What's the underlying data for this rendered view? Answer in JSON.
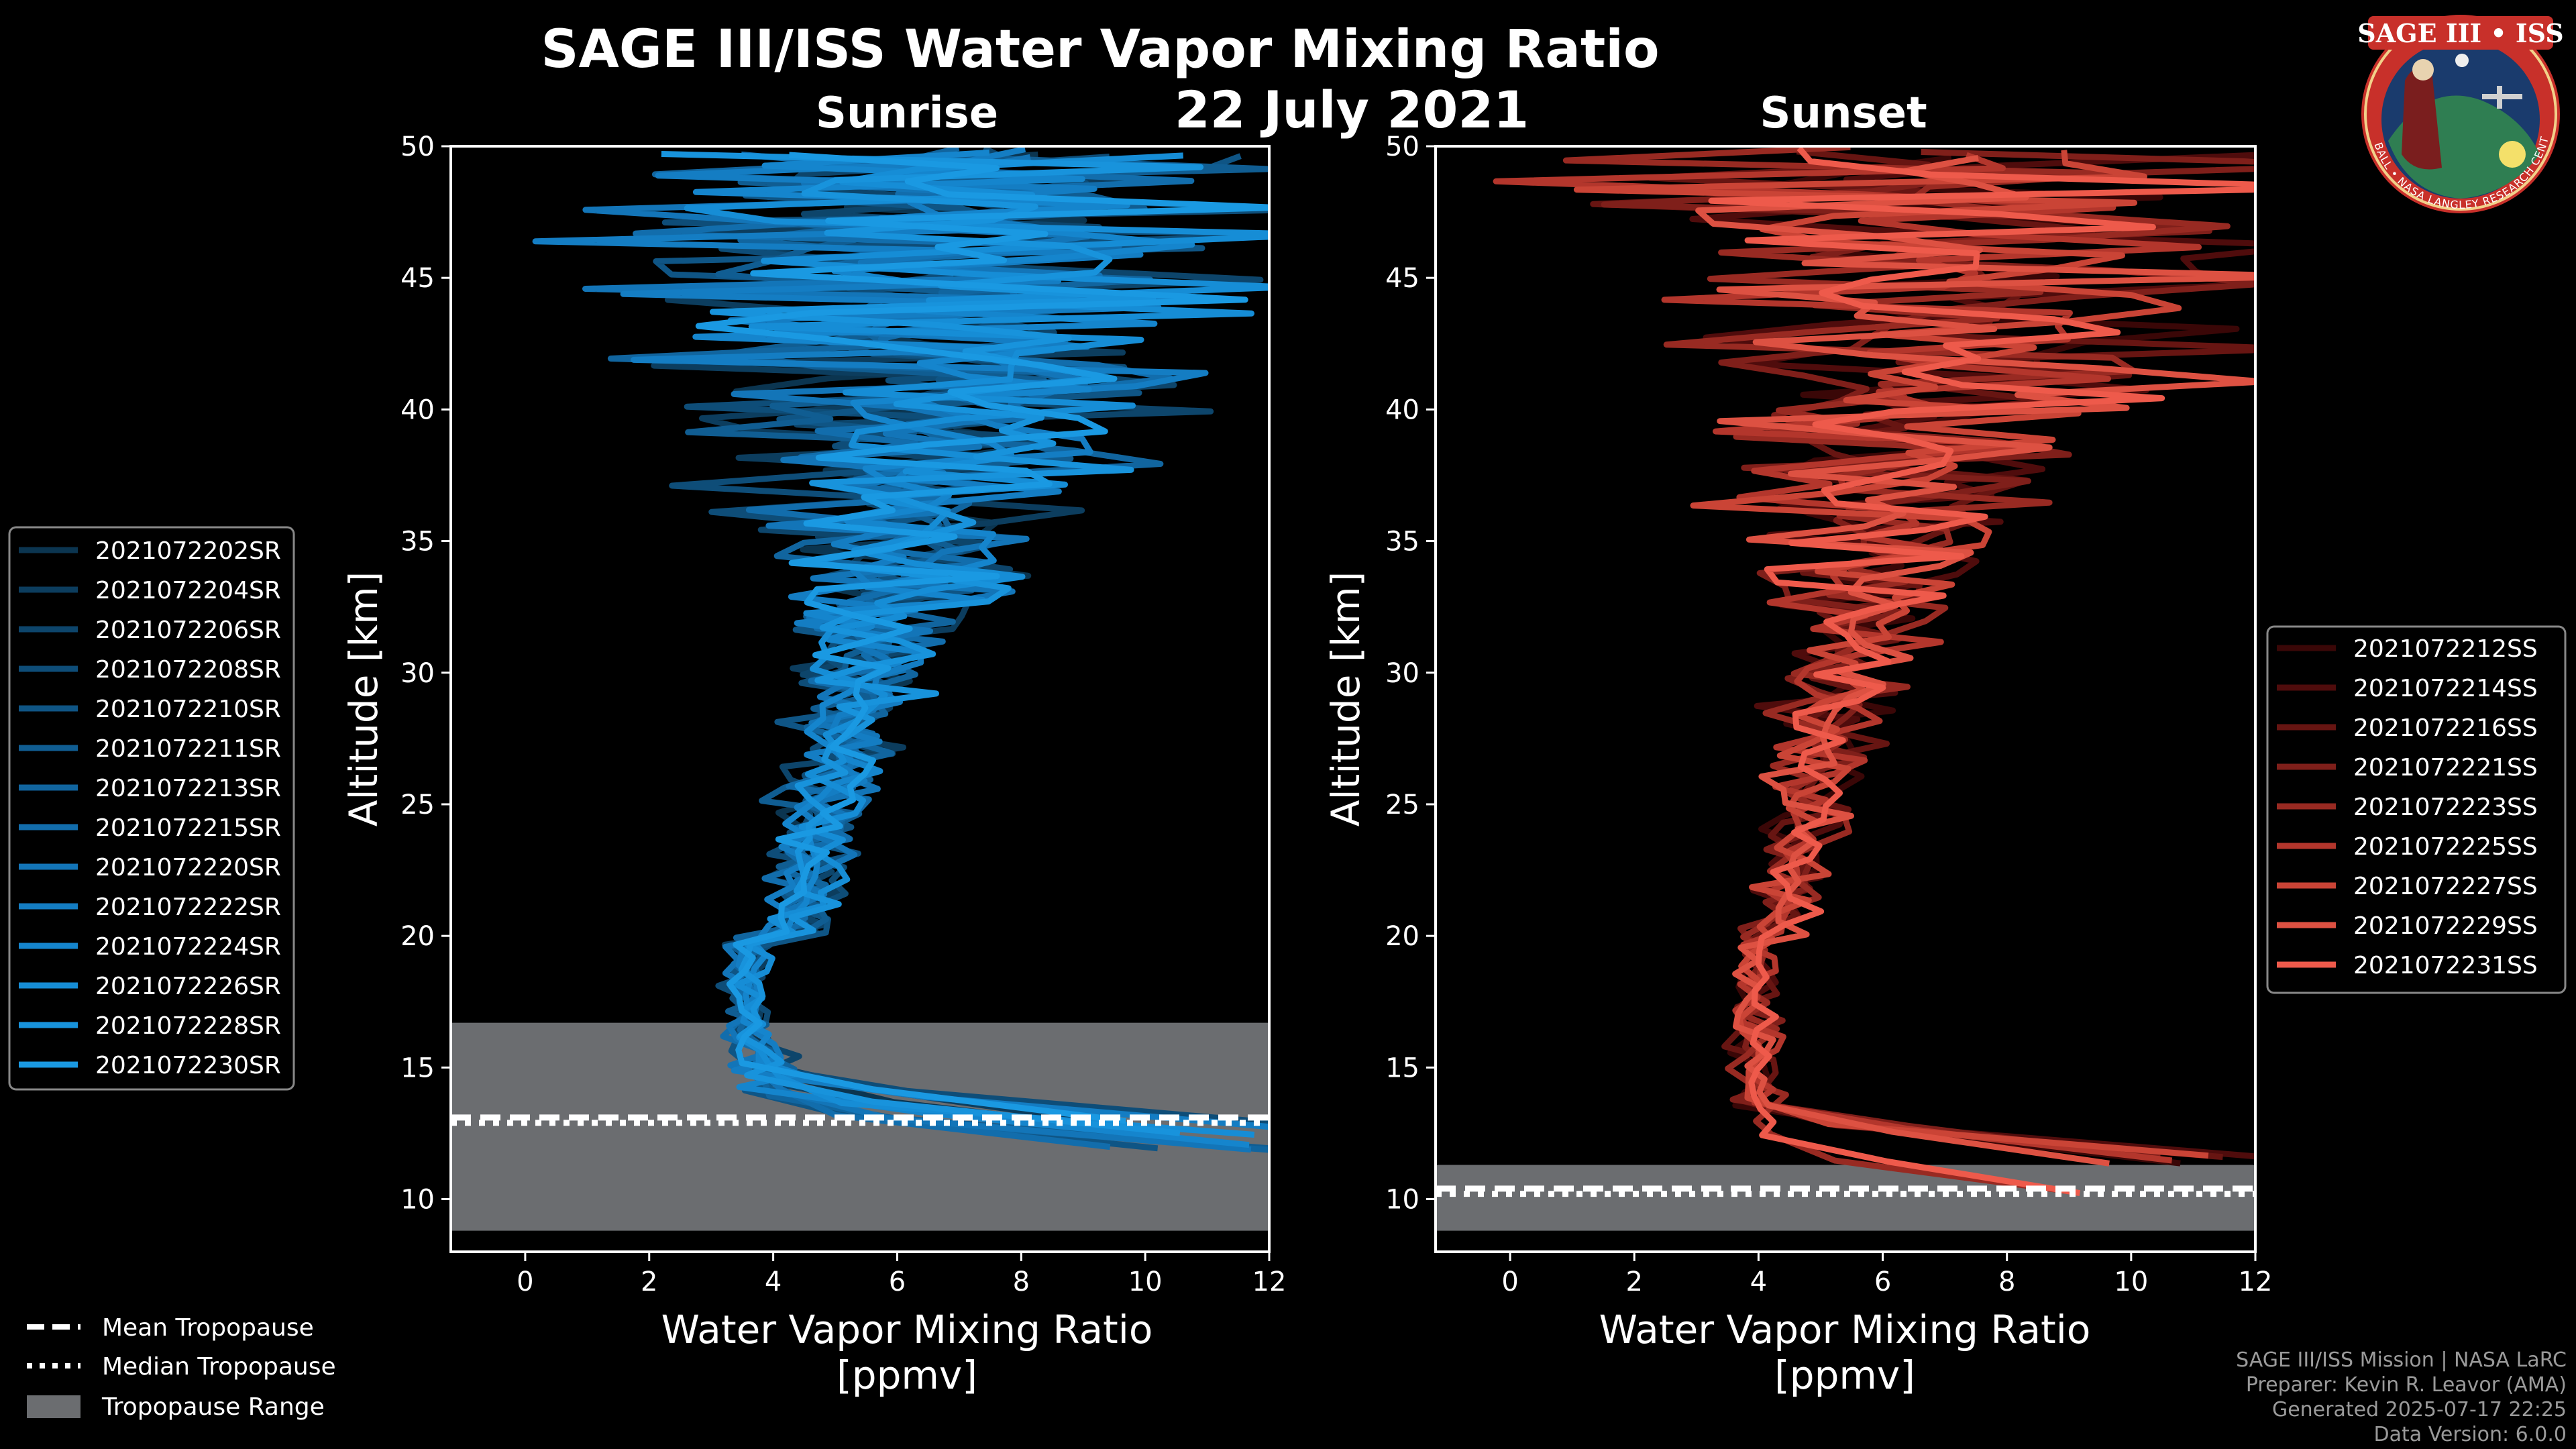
{
  "chart_data": {
    "type": "line",
    "title": "SAGE III/ISS Water Vapor Mixing Ratio",
    "subtitle": "22 July 2021",
    "panels": [
      {
        "name": "Sunrise",
        "xlabel_line1": "Water Vapor Mixing Ratio",
        "xlabel_line2": "[ppmv]",
        "ylabel": "Altitude [km]",
        "xlim": [
          -1.2,
          12
        ],
        "ylim": [
          8,
          50
        ],
        "xticks": [
          "0",
          "2",
          "4",
          "6",
          "8",
          "10",
          "12"
        ],
        "yticks": [
          "10",
          "15",
          "20",
          "25",
          "30",
          "35",
          "40",
          "45",
          "50"
        ],
        "tropopause": {
          "mean": 13.1,
          "median": 12.9,
          "range": [
            8.8,
            16.7
          ]
        },
        "series": [
          {
            "name": "2021072202SR",
            "color": "#0b3550"
          },
          {
            "name": "2021072204SR",
            "color": "#0c3d5e"
          },
          {
            "name": "2021072206SR",
            "color": "#0d456b"
          },
          {
            "name": "2021072208SR",
            "color": "#0e4d78"
          },
          {
            "name": "2021072210SR",
            "color": "#0f5585"
          },
          {
            "name": "2021072211SR",
            "color": "#105d92"
          },
          {
            "name": "2021072213SR",
            "color": "#11659f"
          },
          {
            "name": "2021072215SR",
            "color": "#126dac"
          },
          {
            "name": "2021072220SR",
            "color": "#1375b8"
          },
          {
            "name": "2021072222SR",
            "color": "#147dc3"
          },
          {
            "name": "2021072224SR",
            "color": "#1585cd"
          },
          {
            "name": "2021072226SR",
            "color": "#168dd6"
          },
          {
            "name": "2021072228SR",
            "color": "#1893dc"
          },
          {
            "name": "2021072230SR",
            "color": "#1a99e2"
          }
        ]
      },
      {
        "name": "Sunset",
        "xlabel_line1": "Water Vapor Mixing Ratio",
        "xlabel_line2": "[ppmv]",
        "ylabel": "Altitude [km]",
        "xlim": [
          -1.2,
          12
        ],
        "ylim": [
          8,
          50
        ],
        "xticks": [
          "0",
          "2",
          "4",
          "6",
          "8",
          "10",
          "12"
        ],
        "yticks": [
          "10",
          "15",
          "20",
          "25",
          "30",
          "35",
          "40",
          "45",
          "50"
        ],
        "tropopause": {
          "mean": 10.4,
          "median": 10.2,
          "range": [
            8.8,
            11.3
          ]
        },
        "series": [
          {
            "name": "2021072212SS",
            "color": "#3a0707"
          },
          {
            "name": "2021072214SS",
            "color": "#4f0c0c"
          },
          {
            "name": "2021072216SS",
            "color": "#671512"
          },
          {
            "name": "2021072221SS",
            "color": "#7f1f1a"
          },
          {
            "name": "2021072223SS",
            "color": "#982a22"
          },
          {
            "name": "2021072225SS",
            "color": "#b3362c"
          },
          {
            "name": "2021072227SS",
            "color": "#ca4436"
          },
          {
            "name": "2021072229SS",
            "color": "#dd5142"
          },
          {
            "name": "2021072231SS",
            "color": "#ee5a4b"
          }
        ]
      }
    ],
    "tropopause_legend": [
      "Mean Tropopause",
      "Median Tropopause",
      "Tropopause Range"
    ]
  },
  "badge": {
    "name": "SAGE III • ISS",
    "ring_text": "BALL • NASA LANGLEY RESEARCH CENTER • TAS-I • ESA"
  },
  "credits": {
    "line1": "SAGE III/ISS Mission | NASA LaRC",
    "line2": "Preparer: Kevin R. Leavor (AMA)",
    "line3": "Generated 2025-07-17 22:25",
    "line4": "Data Version: 6.0.0"
  }
}
